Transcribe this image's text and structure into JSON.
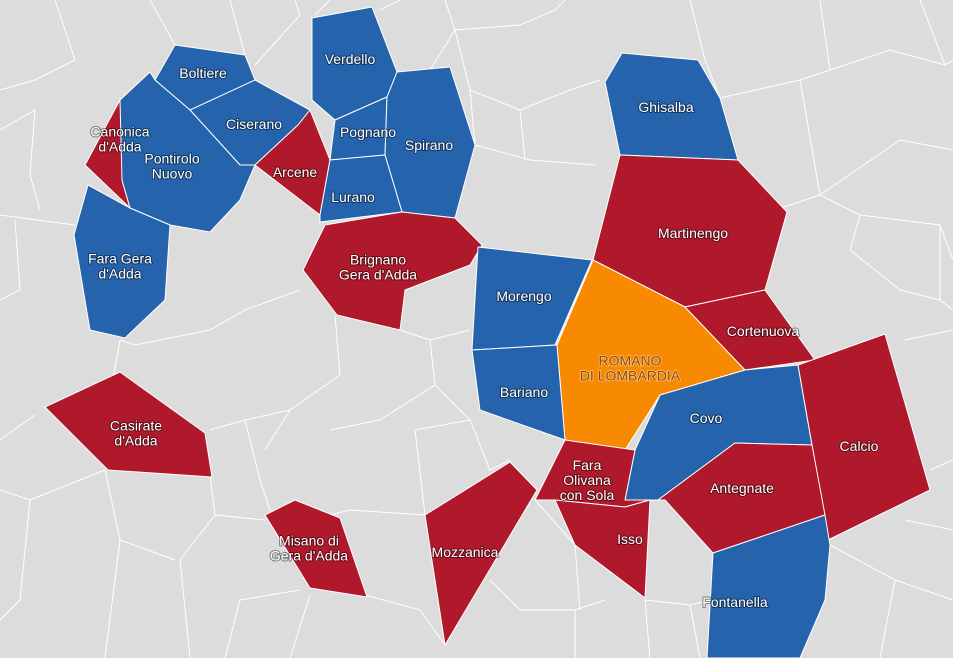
{
  "colors": {
    "background": "#dcdcdc",
    "blue": "#2563ad",
    "red": "#b0182b",
    "orange": "#f78a00",
    "border": "#ffffff"
  },
  "municipalities": [
    {
      "id": "boltiere",
      "lines": [
        "Boltiere"
      ],
      "fill": "blue"
    },
    {
      "id": "verdello",
      "lines": [
        "Verdello"
      ],
      "fill": "blue"
    },
    {
      "id": "canonica",
      "lines": [
        "Canonica",
        "d'Adda"
      ],
      "fill": "red"
    },
    {
      "id": "ciserano",
      "lines": [
        "Ciserano"
      ],
      "fill": "blue"
    },
    {
      "id": "pontirolo",
      "lines": [
        "Pontirolo",
        "Nuovo"
      ],
      "fill": "blue"
    },
    {
      "id": "pognano",
      "lines": [
        "Pognano"
      ],
      "fill": "blue"
    },
    {
      "id": "spirano",
      "lines": [
        "Spirano"
      ],
      "fill": "blue"
    },
    {
      "id": "arcene",
      "lines": [
        "Arcene"
      ],
      "fill": "red"
    },
    {
      "id": "lurano",
      "lines": [
        "Lurano"
      ],
      "fill": "blue"
    },
    {
      "id": "fara-gera",
      "lines": [
        "Fara Gera",
        "d'Adda"
      ],
      "fill": "blue"
    },
    {
      "id": "brignano",
      "lines": [
        "Brignano",
        "Gera d'Adda"
      ],
      "fill": "red"
    },
    {
      "id": "ghisalba",
      "lines": [
        "Ghisalba"
      ],
      "fill": "blue"
    },
    {
      "id": "martinengo",
      "lines": [
        "Martinengo"
      ],
      "fill": "red"
    },
    {
      "id": "morengo",
      "lines": [
        "Morengo"
      ],
      "fill": "blue"
    },
    {
      "id": "romano",
      "lines": [
        "ROMANO",
        "DI LOMBARDIA"
      ],
      "fill": "orange"
    },
    {
      "id": "cortenuova",
      "lines": [
        "Cortenuova"
      ],
      "fill": "red"
    },
    {
      "id": "bariano",
      "lines": [
        "Bariano"
      ],
      "fill": "blue"
    },
    {
      "id": "covo",
      "lines": [
        "Covo"
      ],
      "fill": "blue"
    },
    {
      "id": "calcio",
      "lines": [
        "Calcio"
      ],
      "fill": "red"
    },
    {
      "id": "casirate",
      "lines": [
        "Casirate",
        "d'Adda"
      ],
      "fill": "red"
    },
    {
      "id": "fara-olivana",
      "lines": [
        "Fara",
        "Olivana",
        "con Sola"
      ],
      "fill": "red"
    },
    {
      "id": "antegnate",
      "lines": [
        "Antegnate"
      ],
      "fill": "red"
    },
    {
      "id": "isso",
      "lines": [
        "Isso"
      ],
      "fill": "red"
    },
    {
      "id": "misano",
      "lines": [
        "Misano di",
        "Gera d'Adda"
      ],
      "fill": "red"
    },
    {
      "id": "mozzanica",
      "lines": [
        "Mozzanica"
      ],
      "fill": "red"
    },
    {
      "id": "fontanella",
      "lines": [
        "Fontanella"
      ],
      "fill": "blue"
    }
  ]
}
